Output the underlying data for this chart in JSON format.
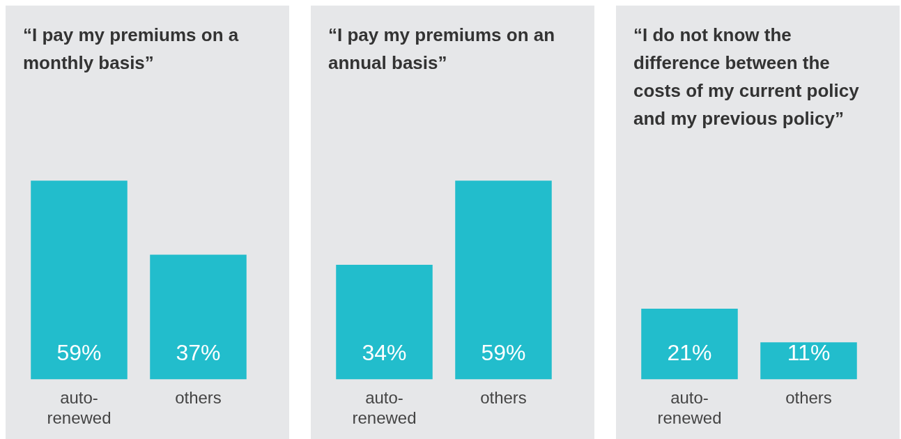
{
  "chart_data": [
    {
      "type": "bar",
      "title": "“I pay my premiums on a monthly basis”",
      "categories": [
        "auto-renewed",
        "others"
      ],
      "values": [
        59,
        37
      ],
      "color": "#22bdcc",
      "data_labels": true,
      "value_labels": [
        "59%",
        "37%"
      ]
    },
    {
      "type": "bar",
      "title": "“I pay my premiums on an annual basis”",
      "categories": [
        "auto-renewed",
        "others"
      ],
      "values": [
        34,
        59
      ],
      "color": "#22bdcc",
      "data_labels": true,
      "value_labels": [
        "34%",
        "59%"
      ]
    },
    {
      "type": "bar",
      "title": "“I do not know the difference between the costs of my current policy and my previous policy”",
      "categories": [
        "auto-renewed",
        "others"
      ],
      "values": [
        21,
        11
      ],
      "color": "#22bdcc",
      "data_labels": true,
      "value_labels": [
        "21%",
        "11%"
      ]
    }
  ]
}
